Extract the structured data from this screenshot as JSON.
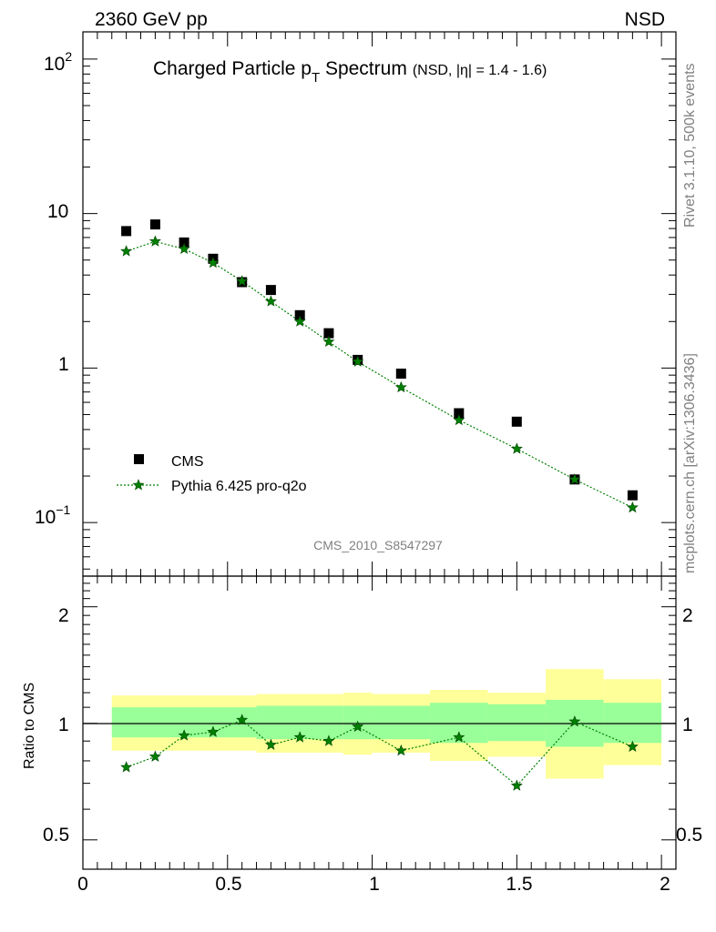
{
  "header": {
    "left": "2360 GeV pp",
    "right": "NSD"
  },
  "side_labels": {
    "rivet": "Rivet 3.1.10,  500k events",
    "mcplots": "mcplots.cern.ch [arXiv:1306.3436]"
  },
  "watermark": "CMS_2010_S8547297",
  "title": {
    "main": "Charged Particle p",
    "sub": "T",
    "main2": " Spectrum",
    "qualifier": "(NSD, |η| = 1.4 - 1.6)"
  },
  "legend": {
    "data_label": "CMS",
    "mc_label": "Pythia 6.425 pro-q2o",
    "placement": "bottom-left"
  },
  "colors": {
    "data": "#000000",
    "mc": "#008000",
    "band_inner": "#99ff99",
    "band_outer": "#ffff99"
  },
  "upper_ticks": {
    "labels": [
      "10",
      "2",
      "10",
      "−1",
      "1",
      "10"
    ]
  },
  "ratio": {
    "ylabel": "Ratio to CMS",
    "tick_labels": [
      "2",
      "1",
      "0.5"
    ]
  },
  "xaxis": {
    "tick_labels": [
      "0",
      "0.5",
      "1",
      "1.5",
      "2"
    ]
  },
  "chart_data": [
    {
      "type": "scatter",
      "scale": "log",
      "xlim": [
        0,
        2.05
      ],
      "ylim": [
        0.045,
        150
      ],
      "yticks": [
        0.1,
        1,
        10,
        100
      ],
      "series": [
        {
          "name": "CMS",
          "marker": "square",
          "x": [
            0.15,
            0.25,
            0.35,
            0.45,
            0.55,
            0.65,
            0.75,
            0.85,
            0.95,
            1.1,
            1.3,
            1.5,
            1.7,
            1.9
          ],
          "y": [
            7.7,
            8.5,
            6.5,
            5.1,
            3.6,
            3.2,
            2.2,
            1.68,
            1.13,
            0.92,
            0.51,
            0.45,
            0.19,
            0.15
          ]
        },
        {
          "name": "Pythia 6.425 pro-q2o",
          "marker": "star",
          "line": "dotted",
          "x": [
            0.15,
            0.25,
            0.35,
            0.45,
            0.55,
            0.65,
            0.75,
            0.85,
            0.95,
            1.1,
            1.3,
            1.5,
            1.7,
            1.9
          ],
          "y": [
            5.7,
            6.6,
            5.9,
            4.8,
            3.65,
            2.7,
            2.0,
            1.48,
            1.1,
            0.75,
            0.46,
            0.3,
            0.19,
            0.125
          ]
        }
      ]
    },
    {
      "type": "line",
      "scale": "log",
      "xlim": [
        0,
        2.05
      ],
      "ylim": [
        0.42,
        2.4
      ],
      "yticks": [
        0.5,
        1,
        2
      ],
      "bands": [
        {
          "x0": 0.1,
          "x1": 0.6,
          "inner": [
            0.92,
            1.1
          ],
          "outer": [
            0.85,
            1.18
          ]
        },
        {
          "x0": 0.6,
          "x1": 0.9,
          "inner": [
            0.91,
            1.11
          ],
          "outer": [
            0.84,
            1.19
          ]
        },
        {
          "x0": 0.9,
          "x1": 1.0,
          "inner": [
            0.91,
            1.11
          ],
          "outer": [
            0.83,
            1.2
          ]
        },
        {
          "x0": 1.0,
          "x1": 1.2,
          "inner": [
            0.91,
            1.11
          ],
          "outer": [
            0.84,
            1.19
          ]
        },
        {
          "x0": 1.2,
          "x1": 1.4,
          "inner": [
            0.89,
            1.13
          ],
          "outer": [
            0.8,
            1.22
          ]
        },
        {
          "x0": 1.4,
          "x1": 1.6,
          "inner": [
            0.9,
            1.12
          ],
          "outer": [
            0.82,
            1.2
          ]
        },
        {
          "x0": 1.6,
          "x1": 1.8,
          "inner": [
            0.87,
            1.15
          ],
          "outer": [
            0.72,
            1.38
          ]
        },
        {
          "x0": 1.8,
          "x1": 2.0,
          "inner": [
            0.89,
            1.13
          ],
          "outer": [
            0.78,
            1.3
          ]
        }
      ],
      "series": [
        {
          "name": "Pythia 6.425 pro-q2o",
          "x": [
            0.15,
            0.25,
            0.35,
            0.45,
            0.55,
            0.65,
            0.75,
            0.85,
            0.95,
            1.1,
            1.3,
            1.5,
            1.7,
            1.9
          ],
          "y": [
            0.77,
            0.82,
            0.93,
            0.95,
            1.02,
            0.88,
            0.92,
            0.9,
            0.98,
            0.85,
            0.92,
            0.69,
            1.01,
            0.87
          ]
        }
      ]
    }
  ]
}
